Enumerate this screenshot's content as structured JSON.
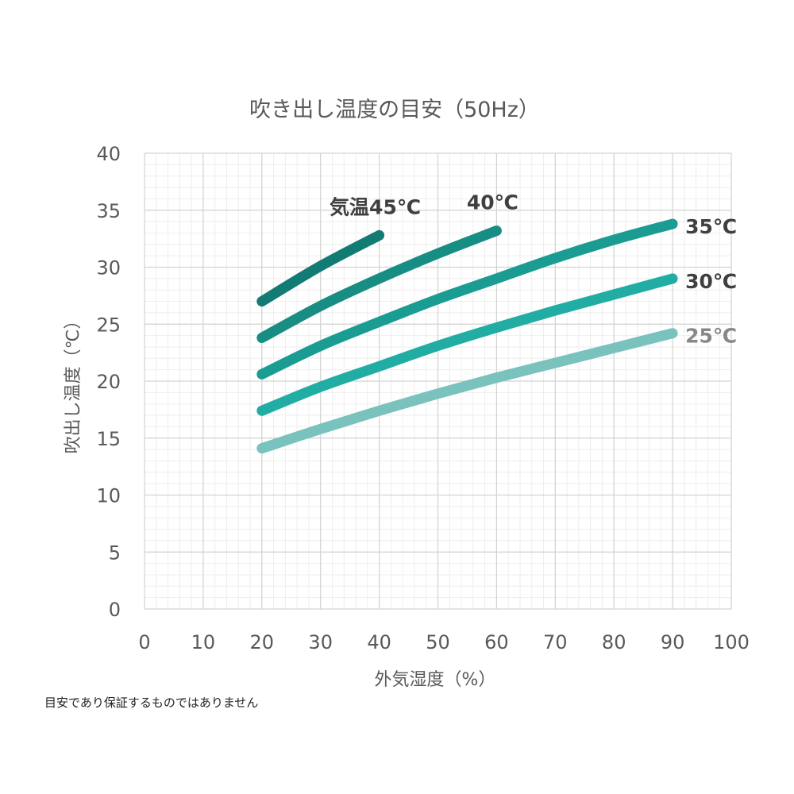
{
  "chart_data": {
    "type": "line",
    "title": "吹き出し温度の目安（50Hz）",
    "xlabel": "外気湿度（%）",
    "ylabel": "吹出し温度（℃）",
    "xlim": [
      0,
      100
    ],
    "ylim": [
      0,
      40
    ],
    "x_ticks": [
      "0",
      "10",
      "20",
      "30",
      "40",
      "50",
      "60",
      "70",
      "80",
      "90",
      "100"
    ],
    "y_ticks": [
      "0",
      "5",
      "10",
      "15",
      "20",
      "25",
      "30",
      "35",
      "40"
    ],
    "grid": true,
    "series": [
      {
        "name": "気温45℃",
        "color": "#127b74",
        "label_color": "#404040",
        "x": [
          20,
          30,
          40
        ],
        "y": [
          27.0,
          30.1,
          32.8
        ]
      },
      {
        "name": "40℃",
        "color": "#178d84",
        "label_color": "#404040",
        "x": [
          20,
          30,
          40,
          50,
          60
        ],
        "y": [
          23.8,
          26.6,
          29.0,
          31.2,
          33.2
        ]
      },
      {
        "name": "35℃",
        "color": "#1a9c93",
        "label_color": "#404040",
        "x": [
          20,
          30,
          40,
          50,
          60,
          70,
          80,
          90
        ],
        "y": [
          20.6,
          23.1,
          25.2,
          27.2,
          29.0,
          30.8,
          32.4,
          33.8
        ]
      },
      {
        "name": "30℃",
        "color": "#22ada4",
        "label_color": "#404040",
        "x": [
          20,
          30,
          40,
          50,
          60,
          70,
          80,
          90
        ],
        "y": [
          17.4,
          19.5,
          21.3,
          23.1,
          24.7,
          26.2,
          27.6,
          29.0
        ]
      },
      {
        "name": "25℃",
        "color": "#79c2bd",
        "label_color": "#888888",
        "x": [
          20,
          30,
          40,
          50,
          60,
          70,
          80,
          90
        ],
        "y": [
          14.1,
          15.8,
          17.4,
          18.9,
          20.3,
          21.6,
          22.9,
          24.2
        ]
      }
    ]
  },
  "footnote": "目安であり保証するものではありません"
}
